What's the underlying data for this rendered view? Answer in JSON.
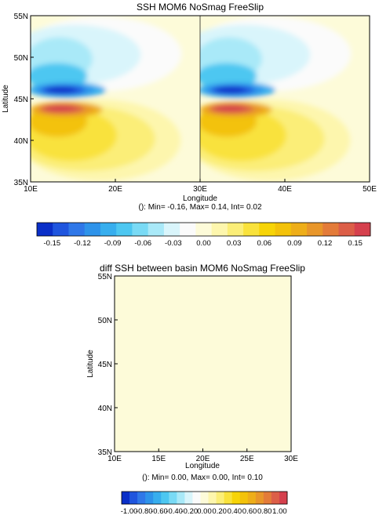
{
  "chart_data": [
    {
      "type": "heatmap",
      "title": "SSH MOM6 NoSmag FreeSlip",
      "xlabel": "Longitude",
      "ylabel": "Latitude",
      "xlim": [
        10,
        50
      ],
      "ylim": [
        35,
        55
      ],
      "x_ticks": [
        "10E",
        "20E",
        "30E",
        "40E",
        "50E"
      ],
      "x_tick_values": [
        10,
        20,
        30,
        40,
        50
      ],
      "y_ticks": [
        "35N",
        "40N",
        "45N",
        "50N",
        "55N"
      ],
      "y_tick_values": [
        35,
        40,
        45,
        50,
        55
      ],
      "stats": "(): Min= -0.16, Max= 0.14, Int= 0.02",
      "basins": [
        [
          10,
          30
        ],
        [
          30,
          50
        ]
      ],
      "field_features": [
        {
          "lon": 14,
          "lat": 46,
          "value": -0.15
        },
        {
          "lon": 14,
          "lat": 43.8,
          "value": 0.14
        },
        {
          "lon": 13,
          "lat": 50,
          "value": -0.05
        },
        {
          "lon": 13,
          "lat": 40,
          "value": 0.05
        }
      ],
      "colorbar": {
        "min": -0.16,
        "max": 0.16,
        "labels": [
          "-0.15",
          "-0.12",
          "-0.09",
          "-0.06",
          "-0.03",
          "0.00",
          "0.03",
          "0.06",
          "0.09",
          "0.12",
          "0.15"
        ],
        "colors": [
          "#0a2fc8",
          "#1f55de",
          "#2f77e8",
          "#2e93ea",
          "#37aeee",
          "#4dc7f1",
          "#79daf5",
          "#a9e9f8",
          "#d9f5fb",
          "#fbfbfb",
          "#fdfbd9",
          "#fdf6ad",
          "#fbee78",
          "#f9e23c",
          "#f7d407",
          "#f3c20a",
          "#eeae19",
          "#e8962a",
          "#e37b39",
          "#dc5e47",
          "#d5404d"
        ]
      },
      "colors": {
        "neutral": "#ffffff"
      }
    },
    {
      "type": "heatmap",
      "title": "diff SSH between basin MOM6 NoSmag FreeSlip",
      "xlabel": "Longitude",
      "ylabel": "Latitude",
      "xlim": [
        10,
        30
      ],
      "ylim": [
        35,
        55
      ],
      "x_ticks": [
        "10E",
        "15E",
        "20E",
        "25E",
        "30E"
      ],
      "x_tick_values": [
        10,
        15,
        20,
        25,
        30
      ],
      "y_ticks": [
        "35N",
        "40N",
        "45N",
        "50N",
        "55N"
      ],
      "y_tick_values": [
        35,
        40,
        45,
        50,
        55
      ],
      "stats": "(): Min= 0.00, Max= 0.00, Int= 0.10",
      "uniform_value": 0.0,
      "fill_color": "#fdfbd9",
      "colorbar": {
        "min": -1.0,
        "max": 1.0,
        "labels": [
          "-1.00",
          "-0.80",
          "-0.60",
          "-0.40",
          "-0.20",
          "0.00",
          "0.20",
          "0.40",
          "0.60",
          "0.80",
          "1.00"
        ],
        "colors": [
          "#0a2fc8",
          "#1f55de",
          "#2f77e8",
          "#2e93ea",
          "#37aeee",
          "#4dc7f1",
          "#79daf5",
          "#a9e9f8",
          "#d9f5fb",
          "#fbfbfb",
          "#fdfbd9",
          "#fdf6ad",
          "#fbee78",
          "#f9e23c",
          "#f7d407",
          "#f3c20a",
          "#eeae19",
          "#e8962a",
          "#e37b39",
          "#dc5e47",
          "#d5404d"
        ]
      }
    }
  ]
}
